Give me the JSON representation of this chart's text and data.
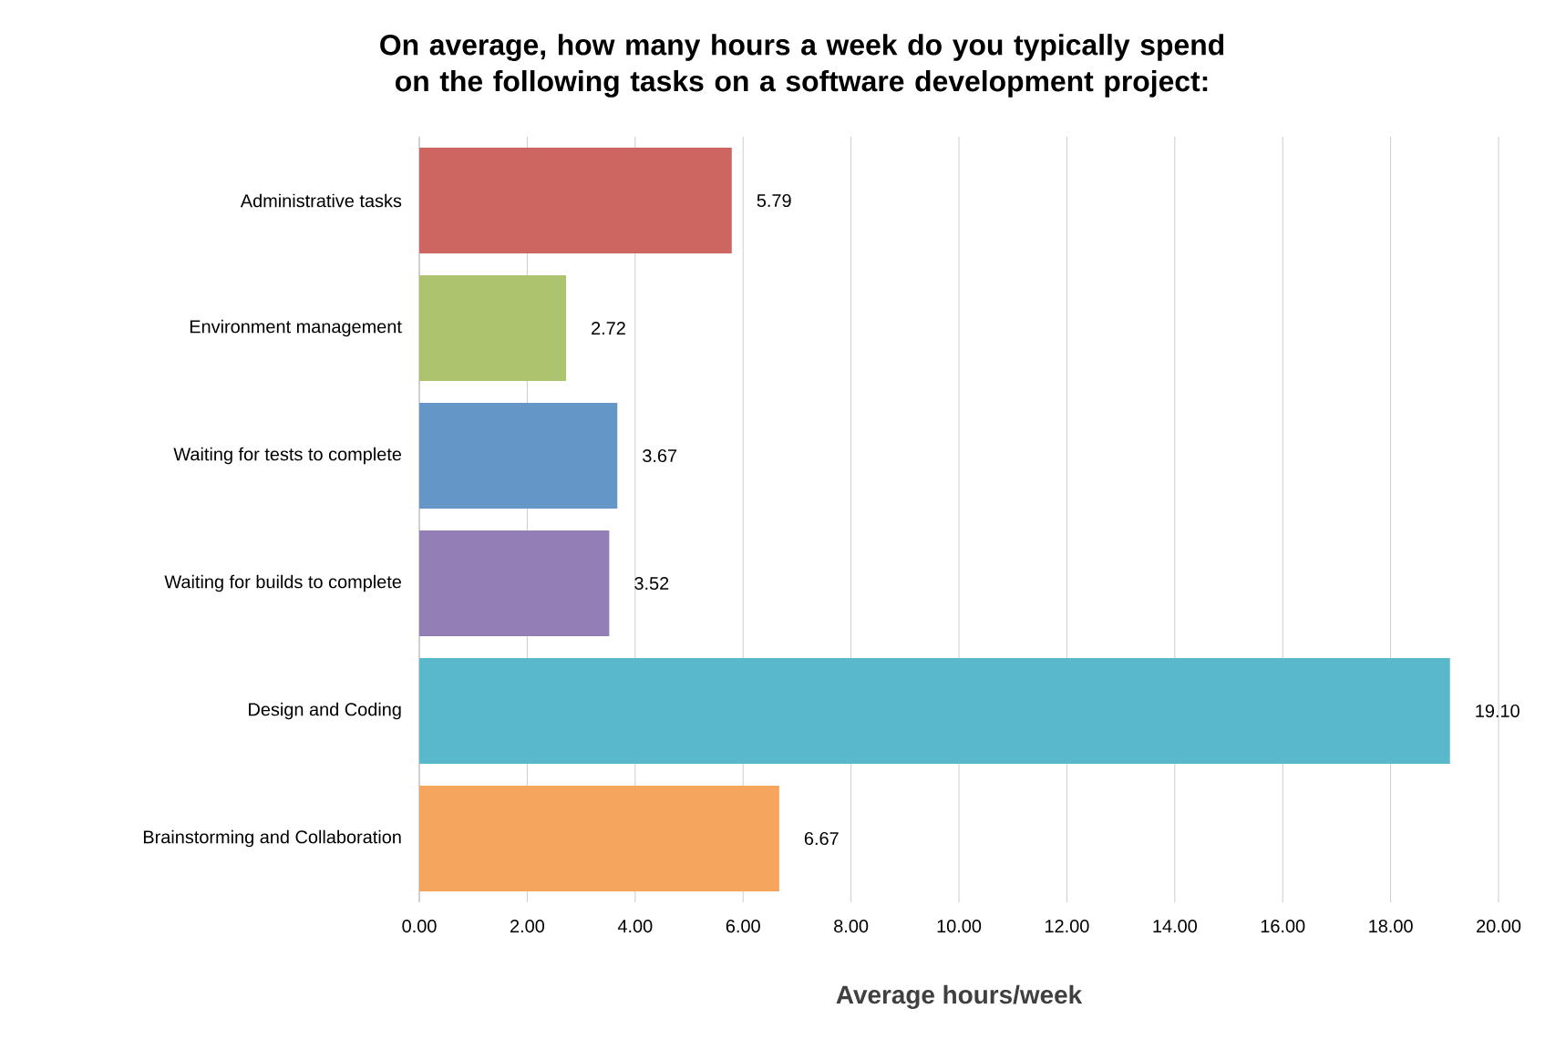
{
  "chart_data": {
    "type": "bar",
    "orientation": "horizontal",
    "title": "On average, how many hours a week do you typically spend on the following tasks on a software development project:",
    "xlabel": "Average hours/week",
    "categories": [
      "Administrative tasks",
      "Environment management",
      "Waiting for tests to complete",
      "Waiting for builds to complete",
      "Design and Coding",
      "Brainstorming and Collaboration"
    ],
    "values": [
      5.79,
      2.72,
      3.67,
      3.52,
      19.1,
      6.67
    ],
    "value_labels": [
      "5.79",
      "2.72",
      "3.67",
      "3.52",
      "19.10",
      "6.67"
    ],
    "colors": [
      "#cd6660",
      "#acc46e",
      "#6596c8",
      "#937eb5",
      "#5ab8cd",
      "#f6a55e"
    ],
    "xlim": [
      0,
      20
    ],
    "xticks": [
      {
        "value": 0,
        "label": "0.00"
      },
      {
        "value": 2,
        "label": "2.00"
      },
      {
        "value": 4,
        "label": "4.00"
      },
      {
        "value": 6,
        "label": "6.00"
      },
      {
        "value": 8,
        "label": "8.00"
      },
      {
        "value": 10,
        "label": "10.00"
      },
      {
        "value": 12,
        "label": "12.00"
      },
      {
        "value": 14,
        "label": "14.00"
      },
      {
        "value": 16,
        "label": "16.00"
      },
      {
        "value": 18,
        "label": "18.00"
      },
      {
        "value": 20,
        "label": "20.00"
      }
    ],
    "grid": "x"
  }
}
